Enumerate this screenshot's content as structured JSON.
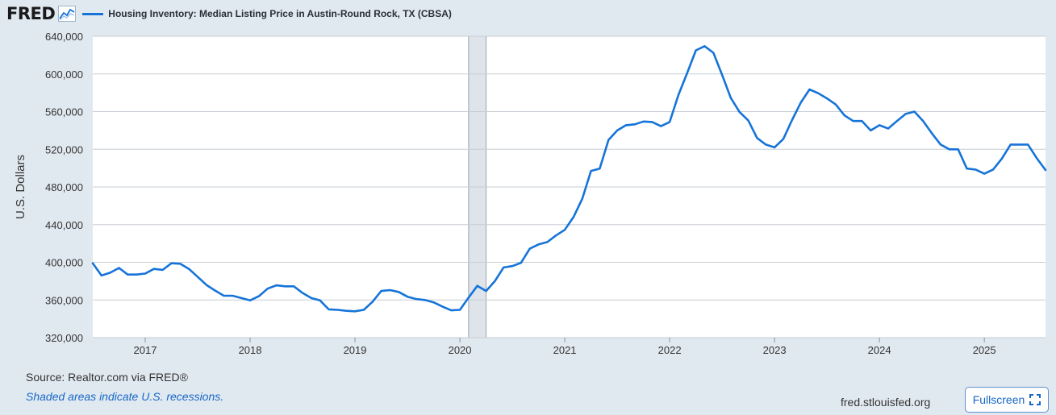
{
  "header": {
    "logo": "FRED",
    "logo_icon": "line-chart-icon",
    "series_title": "Housing Inventory: Median Listing Price in Austin-Round Rock, TX (CBSA)"
  },
  "footer": {
    "source": "Source: Realtor.com via FRED®",
    "recession_note": "Shaded areas indicate U.S. recessions.",
    "site": "fred.stlouisfed.org",
    "fullscreen_label": "Fullscreen",
    "fullscreen_icon": "expand-icon"
  },
  "colors": {
    "line": "#1674d8",
    "recession": "#dfe4ea",
    "plot_bg": "#ffffff",
    "page_bg": "#e1e9f0"
  },
  "chart_data": {
    "type": "line",
    "title": "Housing Inventory: Median Listing Price in Austin-Round Rock, TX (CBSA)",
    "xlabel": "",
    "ylabel": "U.S. Dollars",
    "ylim": [
      320000,
      640000
    ],
    "yticks": [
      320000,
      360000,
      400000,
      440000,
      480000,
      520000,
      560000,
      600000,
      640000
    ],
    "ytick_labels": [
      "320,000",
      "360,000",
      "400,000",
      "440,000",
      "480,000",
      "520,000",
      "560,000",
      "600,000",
      "640,000"
    ],
    "xlim": [
      "2016-07-01",
      "2025-08-01"
    ],
    "xticks": [
      "2017",
      "2018",
      "2019",
      "2020",
      "2021",
      "2022",
      "2023",
      "2024",
      "2025"
    ],
    "grid": "horizontal",
    "recessions": [
      {
        "start": "2020-02-01",
        "end": "2020-04-01"
      }
    ],
    "series": [
      {
        "name": "Housing Inventory: Median Listing Price in Austin-Round Rock, TX (CBSA)",
        "start": "2016-07",
        "frequency": "monthly",
        "values": [
          399000,
          386000,
          389000,
          394000,
          387000,
          387000,
          388000,
          393000,
          392000,
          399000,
          398500,
          393000,
          384500,
          376000,
          370000,
          364500,
          364500,
          362000,
          359500,
          364000,
          372000,
          375500,
          374500,
          374500,
          367500,
          362000,
          359500,
          350000,
          349500,
          348500,
          348000,
          349500,
          358000,
          369500,
          370500,
          368500,
          363500,
          361000,
          360000,
          357500,
          353000,
          349000,
          349500,
          362500,
          375000,
          369500,
          380000,
          394500,
          396000,
          399500,
          414500,
          419000,
          421500,
          428500,
          434500,
          448000,
          467500,
          497000,
          499500,
          530000,
          540000,
          545500,
          546500,
          549500,
          549000,
          544500,
          549000,
          577500,
          601000,
          625000,
          629500,
          622500,
          599000,
          574500,
          559500,
          550500,
          532000,
          525000,
          522000,
          531000,
          551000,
          569500,
          583500,
          579500,
          574000,
          567500,
          556000,
          550000,
          550000,
          540000,
          545500,
          542000,
          550000,
          557500,
          560000,
          550000,
          537000,
          525000,
          520000,
          520000,
          499500,
          498500,
          494000,
          498500,
          510000,
          525000,
          525000,
          525000,
          510500,
          498000
        ]
      }
    ]
  }
}
